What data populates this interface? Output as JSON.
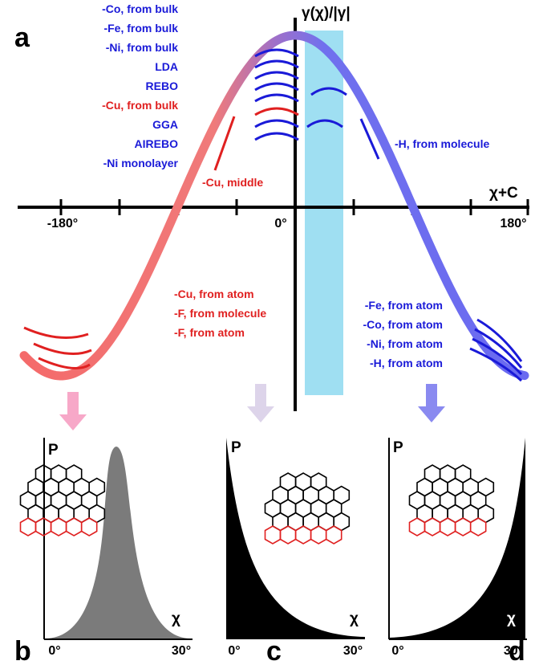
{
  "panel_a": {
    "label": "a",
    "y_axis_label": "γ(χ)/|γ|",
    "x_axis_label": "χ+C",
    "x_ticks": [
      "-180°",
      "0°",
      "180°"
    ],
    "upper_left_labels": [
      "-Co, from bulk",
      "-Fe, from bulk",
      "-Ni, from bulk",
      "LDA",
      "REBO",
      "-Cu, from bulk",
      "GGA",
      "AIREBO",
      "-Ni monolayer"
    ],
    "middle_label": "-Cu, middle",
    "right_label": "-H, from molecule",
    "lower_left_labels": [
      "-Cu, from atom",
      "-F, from molecule",
      "-F, from atom"
    ],
    "lower_right_labels": [
      "-Fe, from atom",
      "-Co, from atom",
      "-Ni, from atom",
      "-H, from atom"
    ]
  },
  "panels": [
    {
      "label": "b",
      "y_axis_label": "P",
      "x_axis_label": "χ",
      "x_ticks": [
        "0°",
        "30°"
      ]
    },
    {
      "label": "c",
      "y_axis_label": "P",
      "x_axis_label": "χ",
      "x_ticks": [
        "0°",
        "30°"
      ]
    },
    {
      "label": "d",
      "y_axis_label": "P",
      "x_axis_label": "χ",
      "x_ticks": [
        "0°",
        "30°"
      ]
    }
  ]
}
